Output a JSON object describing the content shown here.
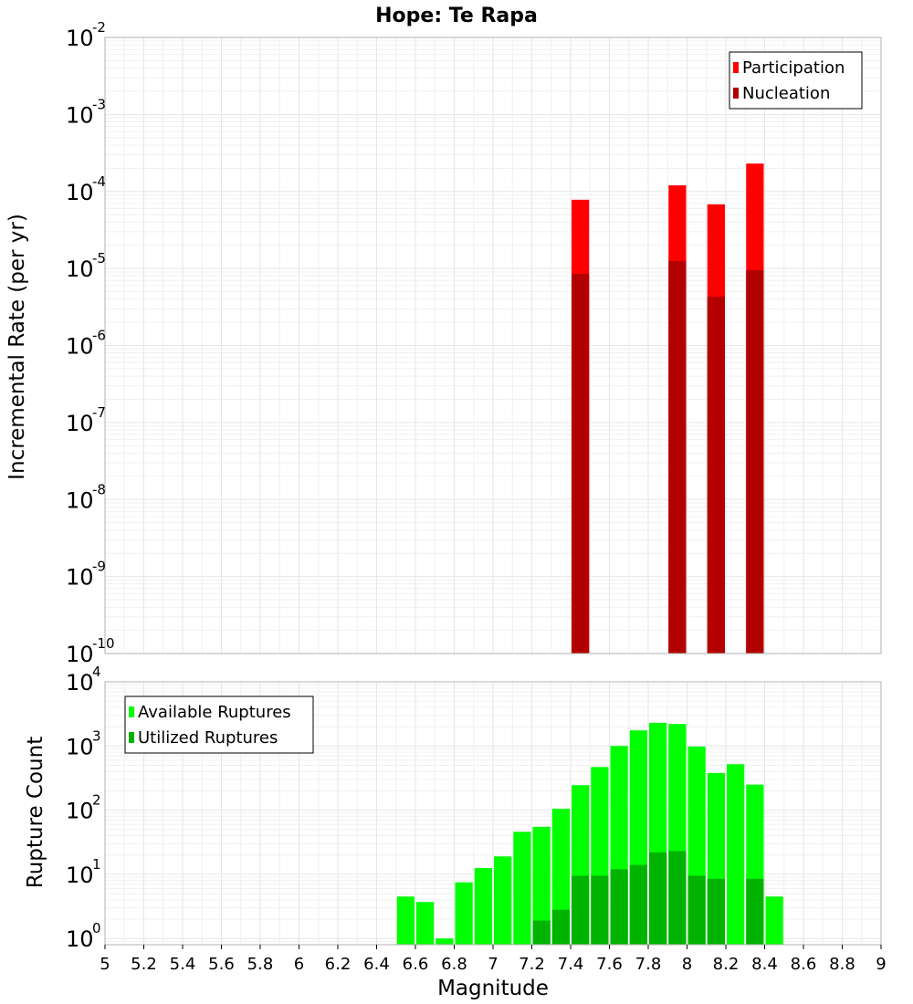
{
  "chart_data": [
    {
      "type": "bar",
      "title": "Hope: Te Rapa",
      "xlabel": "",
      "ylabel": "Incremental Rate (per yr)",
      "yscale": "log",
      "ylim": [
        1e-10,
        0.01
      ],
      "xlim": [
        5,
        9
      ],
      "grid": true,
      "legend_position": "top-right",
      "y_tick_bases": [
        "10",
        "10",
        "10",
        "10",
        "10",
        "10",
        "10",
        "10",
        "10"
      ],
      "y_tick_exponents": [
        "-10",
        "-9",
        "-8",
        "-7",
        "-6",
        "-5",
        "-4",
        "-3",
        "-2"
      ],
      "series": [
        {
          "name": "Participation",
          "color": "#ff0000",
          "x": [
            7.45,
            7.95,
            8.15,
            8.35
          ],
          "values": [
            7.8e-05,
            0.00012,
            6.8e-05,
            0.00023
          ]
        },
        {
          "name": "Nucleation",
          "color": "#b30000",
          "x": [
            7.45,
            7.95,
            8.15,
            8.35
          ],
          "values": [
            8.5e-06,
            1.25e-05,
            4.3e-06,
            9.5e-06
          ]
        }
      ]
    },
    {
      "type": "bar",
      "title": "",
      "xlabel": "Magnitude",
      "ylabel": "Rupture Count",
      "yscale": "log",
      "ylim": [
        0.8,
        10000
      ],
      "xlim": [
        5,
        9
      ],
      "grid": true,
      "legend_position": "top-left",
      "x_ticks": [
        "5",
        "5.2",
        "5.4",
        "5.6",
        "5.8",
        "6",
        "6.2",
        "6.4",
        "6.6",
        "6.8",
        "7",
        "7.2",
        "7.4",
        "7.6",
        "7.8",
        "8",
        "8.2",
        "8.4",
        "8.6",
        "8.8",
        "9"
      ],
      "y_tick_bases": [
        "10",
        "10",
        "10",
        "10",
        "10"
      ],
      "y_tick_exponents": [
        "0",
        "1",
        "2",
        "3",
        "4"
      ],
      "series": [
        {
          "name": "Available Ruptures",
          "color": "#00ff00",
          "x": [
            6.55,
            6.65,
            6.75,
            6.85,
            6.95,
            7.05,
            7.15,
            7.25,
            7.35,
            7.45,
            7.55,
            7.65,
            7.75,
            7.85,
            7.95,
            8.05,
            8.15,
            8.25,
            8.35,
            8.45
          ],
          "values": [
            4.5,
            3.7,
            1.0,
            7.5,
            12.5,
            19,
            46,
            55,
            105,
            245,
            470,
            1000,
            1750,
            2300,
            2200,
            980,
            380,
            520,
            250,
            4.5
          ]
        },
        {
          "name": "Utilized Ruptures",
          "color": "#00b300",
          "x": [
            7.25,
            7.35,
            7.45,
            7.55,
            7.65,
            7.75,
            7.85,
            7.95,
            8.05,
            8.15,
            8.35
          ],
          "values": [
            1.9,
            2.8,
            9.5,
            9.5,
            12,
            14,
            22,
            23,
            9.5,
            8.5,
            8.5
          ]
        }
      ]
    }
  ]
}
